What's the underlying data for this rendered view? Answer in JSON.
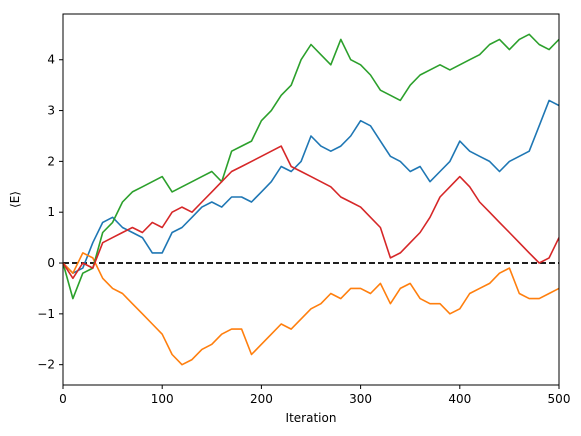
{
  "chart_data": {
    "type": "line",
    "xlabel": "Iteration",
    "ylabel": "⟨E⟩",
    "xlim": [
      0,
      500
    ],
    "ylim": [
      -2.4,
      4.9
    ],
    "x_ticks": [
      0,
      100,
      200,
      300,
      400,
      500
    ],
    "y_ticks": [
      -2,
      -1,
      0,
      1,
      2,
      3,
      4
    ],
    "x_tick_labels": [
      "0",
      "100",
      "200",
      "300",
      "400",
      "500"
    ],
    "y_tick_labels": [
      "−2",
      "−1",
      "0",
      "1",
      "2",
      "3",
      "4"
    ],
    "grid": false,
    "reference_line": {
      "y": 0,
      "style": "dashed",
      "color": "#000000"
    },
    "series": [
      {
        "color": "#1f77b4",
        "x": [
          0,
          10,
          20,
          30,
          40,
          50,
          60,
          70,
          80,
          90,
          100,
          110,
          120,
          130,
          140,
          150,
          160,
          170,
          180,
          190,
          200,
          210,
          220,
          230,
          240,
          250,
          260,
          270,
          280,
          290,
          300,
          310,
          320,
          330,
          340,
          350,
          360,
          370,
          380,
          390,
          400,
          410,
          420,
          430,
          440,
          450,
          460,
          470,
          480,
          490,
          500
        ],
        "y": [
          0.0,
          -0.2,
          -0.1,
          0.4,
          0.8,
          0.9,
          0.7,
          0.6,
          0.5,
          0.2,
          0.2,
          0.6,
          0.7,
          0.9,
          1.1,
          1.2,
          1.1,
          1.3,
          1.3,
          1.2,
          1.4,
          1.6,
          1.9,
          1.8,
          2.0,
          2.5,
          2.3,
          2.2,
          2.3,
          2.5,
          2.8,
          2.7,
          2.4,
          2.1,
          2.0,
          1.8,
          1.9,
          1.6,
          1.8,
          2.0,
          2.4,
          2.2,
          2.1,
          2.0,
          1.8,
          2.0,
          2.1,
          2.2,
          2.7,
          3.2,
          3.1
        ]
      },
      {
        "color": "#ff7f0e",
        "x": [
          0,
          10,
          20,
          30,
          40,
          50,
          60,
          70,
          80,
          90,
          100,
          110,
          120,
          130,
          140,
          150,
          160,
          170,
          180,
          190,
          200,
          210,
          220,
          230,
          240,
          250,
          260,
          270,
          280,
          290,
          300,
          310,
          320,
          330,
          340,
          350,
          360,
          370,
          380,
          390,
          400,
          410,
          420,
          430,
          440,
          450,
          460,
          470,
          480,
          490,
          500
        ],
        "y": [
          0.0,
          -0.2,
          0.2,
          0.1,
          -0.3,
          -0.5,
          -0.6,
          -0.8,
          -1.0,
          -1.2,
          -1.4,
          -1.8,
          -2.0,
          -1.9,
          -1.7,
          -1.6,
          -1.4,
          -1.3,
          -1.3,
          -1.8,
          -1.6,
          -1.4,
          -1.2,
          -1.3,
          -1.1,
          -0.9,
          -0.8,
          -0.6,
          -0.7,
          -0.5,
          -0.5,
          -0.6,
          -0.4,
          -0.8,
          -0.5,
          -0.4,
          -0.7,
          -0.8,
          -0.8,
          -1.0,
          -0.9,
          -0.6,
          -0.5,
          -0.4,
          -0.2,
          -0.1,
          -0.6,
          -0.7,
          -0.7,
          -0.6,
          -0.5
        ]
      },
      {
        "color": "#2ca02c",
        "x": [
          0,
          10,
          20,
          30,
          40,
          50,
          60,
          70,
          80,
          90,
          100,
          110,
          120,
          130,
          140,
          150,
          160,
          170,
          180,
          190,
          200,
          210,
          220,
          230,
          240,
          250,
          260,
          270,
          280,
          290,
          300,
          310,
          320,
          330,
          340,
          350,
          360,
          370,
          380,
          390,
          400,
          410,
          420,
          430,
          440,
          450,
          460,
          470,
          480,
          490,
          500
        ],
        "y": [
          0.0,
          -0.7,
          -0.2,
          -0.1,
          0.6,
          0.8,
          1.2,
          1.4,
          1.5,
          1.6,
          1.7,
          1.4,
          1.5,
          1.6,
          1.7,
          1.8,
          1.6,
          2.2,
          2.3,
          2.4,
          2.8,
          3.0,
          3.3,
          3.5,
          4.0,
          4.3,
          4.1,
          3.9,
          4.4,
          4.0,
          3.9,
          3.7,
          3.4,
          3.3,
          3.2,
          3.5,
          3.7,
          3.8,
          3.9,
          3.8,
          3.9,
          4.0,
          4.1,
          4.3,
          4.4,
          4.2,
          4.4,
          4.5,
          4.3,
          4.2,
          4.4
        ]
      },
      {
        "color": "#d62728",
        "x": [
          0,
          10,
          20,
          30,
          40,
          50,
          60,
          70,
          80,
          90,
          100,
          110,
          120,
          130,
          140,
          150,
          160,
          170,
          180,
          190,
          200,
          210,
          220,
          230,
          240,
          250,
          260,
          270,
          280,
          290,
          300,
          310,
          320,
          330,
          340,
          350,
          360,
          370,
          380,
          390,
          400,
          410,
          420,
          430,
          440,
          450,
          460,
          470,
          480,
          490,
          500
        ],
        "y": [
          0.0,
          -0.3,
          0.0,
          -0.1,
          0.4,
          0.5,
          0.6,
          0.7,
          0.6,
          0.8,
          0.7,
          1.0,
          1.1,
          1.0,
          1.2,
          1.4,
          1.6,
          1.8,
          1.9,
          2.0,
          2.1,
          2.2,
          2.3,
          1.9,
          1.8,
          1.7,
          1.6,
          1.5,
          1.3,
          1.2,
          1.1,
          0.9,
          0.7,
          0.1,
          0.2,
          0.4,
          0.6,
          0.9,
          1.3,
          1.5,
          1.7,
          1.5,
          1.2,
          1.0,
          0.8,
          0.6,
          0.4,
          0.2,
          0.0,
          0.1,
          0.5
        ]
      }
    ]
  }
}
